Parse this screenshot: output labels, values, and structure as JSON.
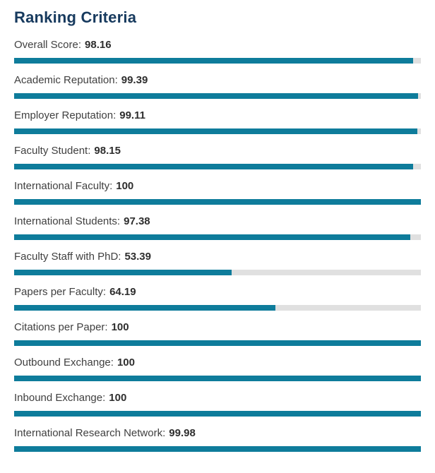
{
  "page": {
    "title": "Ranking Criteria"
  },
  "colors": {
    "bar_fill": "#0e7c9b",
    "bar_track": "#e0e0e0",
    "title": "#173a5e",
    "label": "#404040",
    "value": "#2e2e2e"
  },
  "criteria": [
    {
      "label": "Overall Score:",
      "value": "98.16",
      "percent": 98.16
    },
    {
      "label": "Academic Reputation:",
      "value": "99.39",
      "percent": 99.39
    },
    {
      "label": "Employer Reputation:",
      "value": "99.11",
      "percent": 99.11
    },
    {
      "label": "Faculty Student:",
      "value": "98.15",
      "percent": 98.15
    },
    {
      "label": "International Faculty:",
      "value": "100",
      "percent": 100
    },
    {
      "label": "International Students:",
      "value": "97.38",
      "percent": 97.38
    },
    {
      "label": "Faculty Staff with PhD:",
      "value": "53.39",
      "percent": 53.39
    },
    {
      "label": "Papers per Faculty:",
      "value": "64.19",
      "percent": 64.19
    },
    {
      "label": "Citations per Paper:",
      "value": "100",
      "percent": 100
    },
    {
      "label": "Outbound Exchange:",
      "value": "100",
      "percent": 100
    },
    {
      "label": "Inbound Exchange:",
      "value": "100",
      "percent": 100
    },
    {
      "label": "International Research Network:",
      "value": "99.98",
      "percent": 99.98
    }
  ],
  "chart_data": {
    "type": "bar",
    "orientation": "horizontal",
    "title": "Ranking Criteria",
    "categories": [
      "Overall Score",
      "Academic Reputation",
      "Employer Reputation",
      "Faculty Student",
      "International Faculty",
      "International Students",
      "Faculty Staff with PhD",
      "Papers per Faculty",
      "Citations per Paper",
      "Outbound Exchange",
      "Inbound Exchange",
      "International Research Network"
    ],
    "values": [
      98.16,
      99.39,
      99.11,
      98.15,
      100,
      97.38,
      53.39,
      64.19,
      100,
      100,
      100,
      99.98
    ],
    "xlim": [
      0,
      100
    ],
    "xlabel": "",
    "ylabel": "",
    "grid": false,
    "legend": "none"
  }
}
